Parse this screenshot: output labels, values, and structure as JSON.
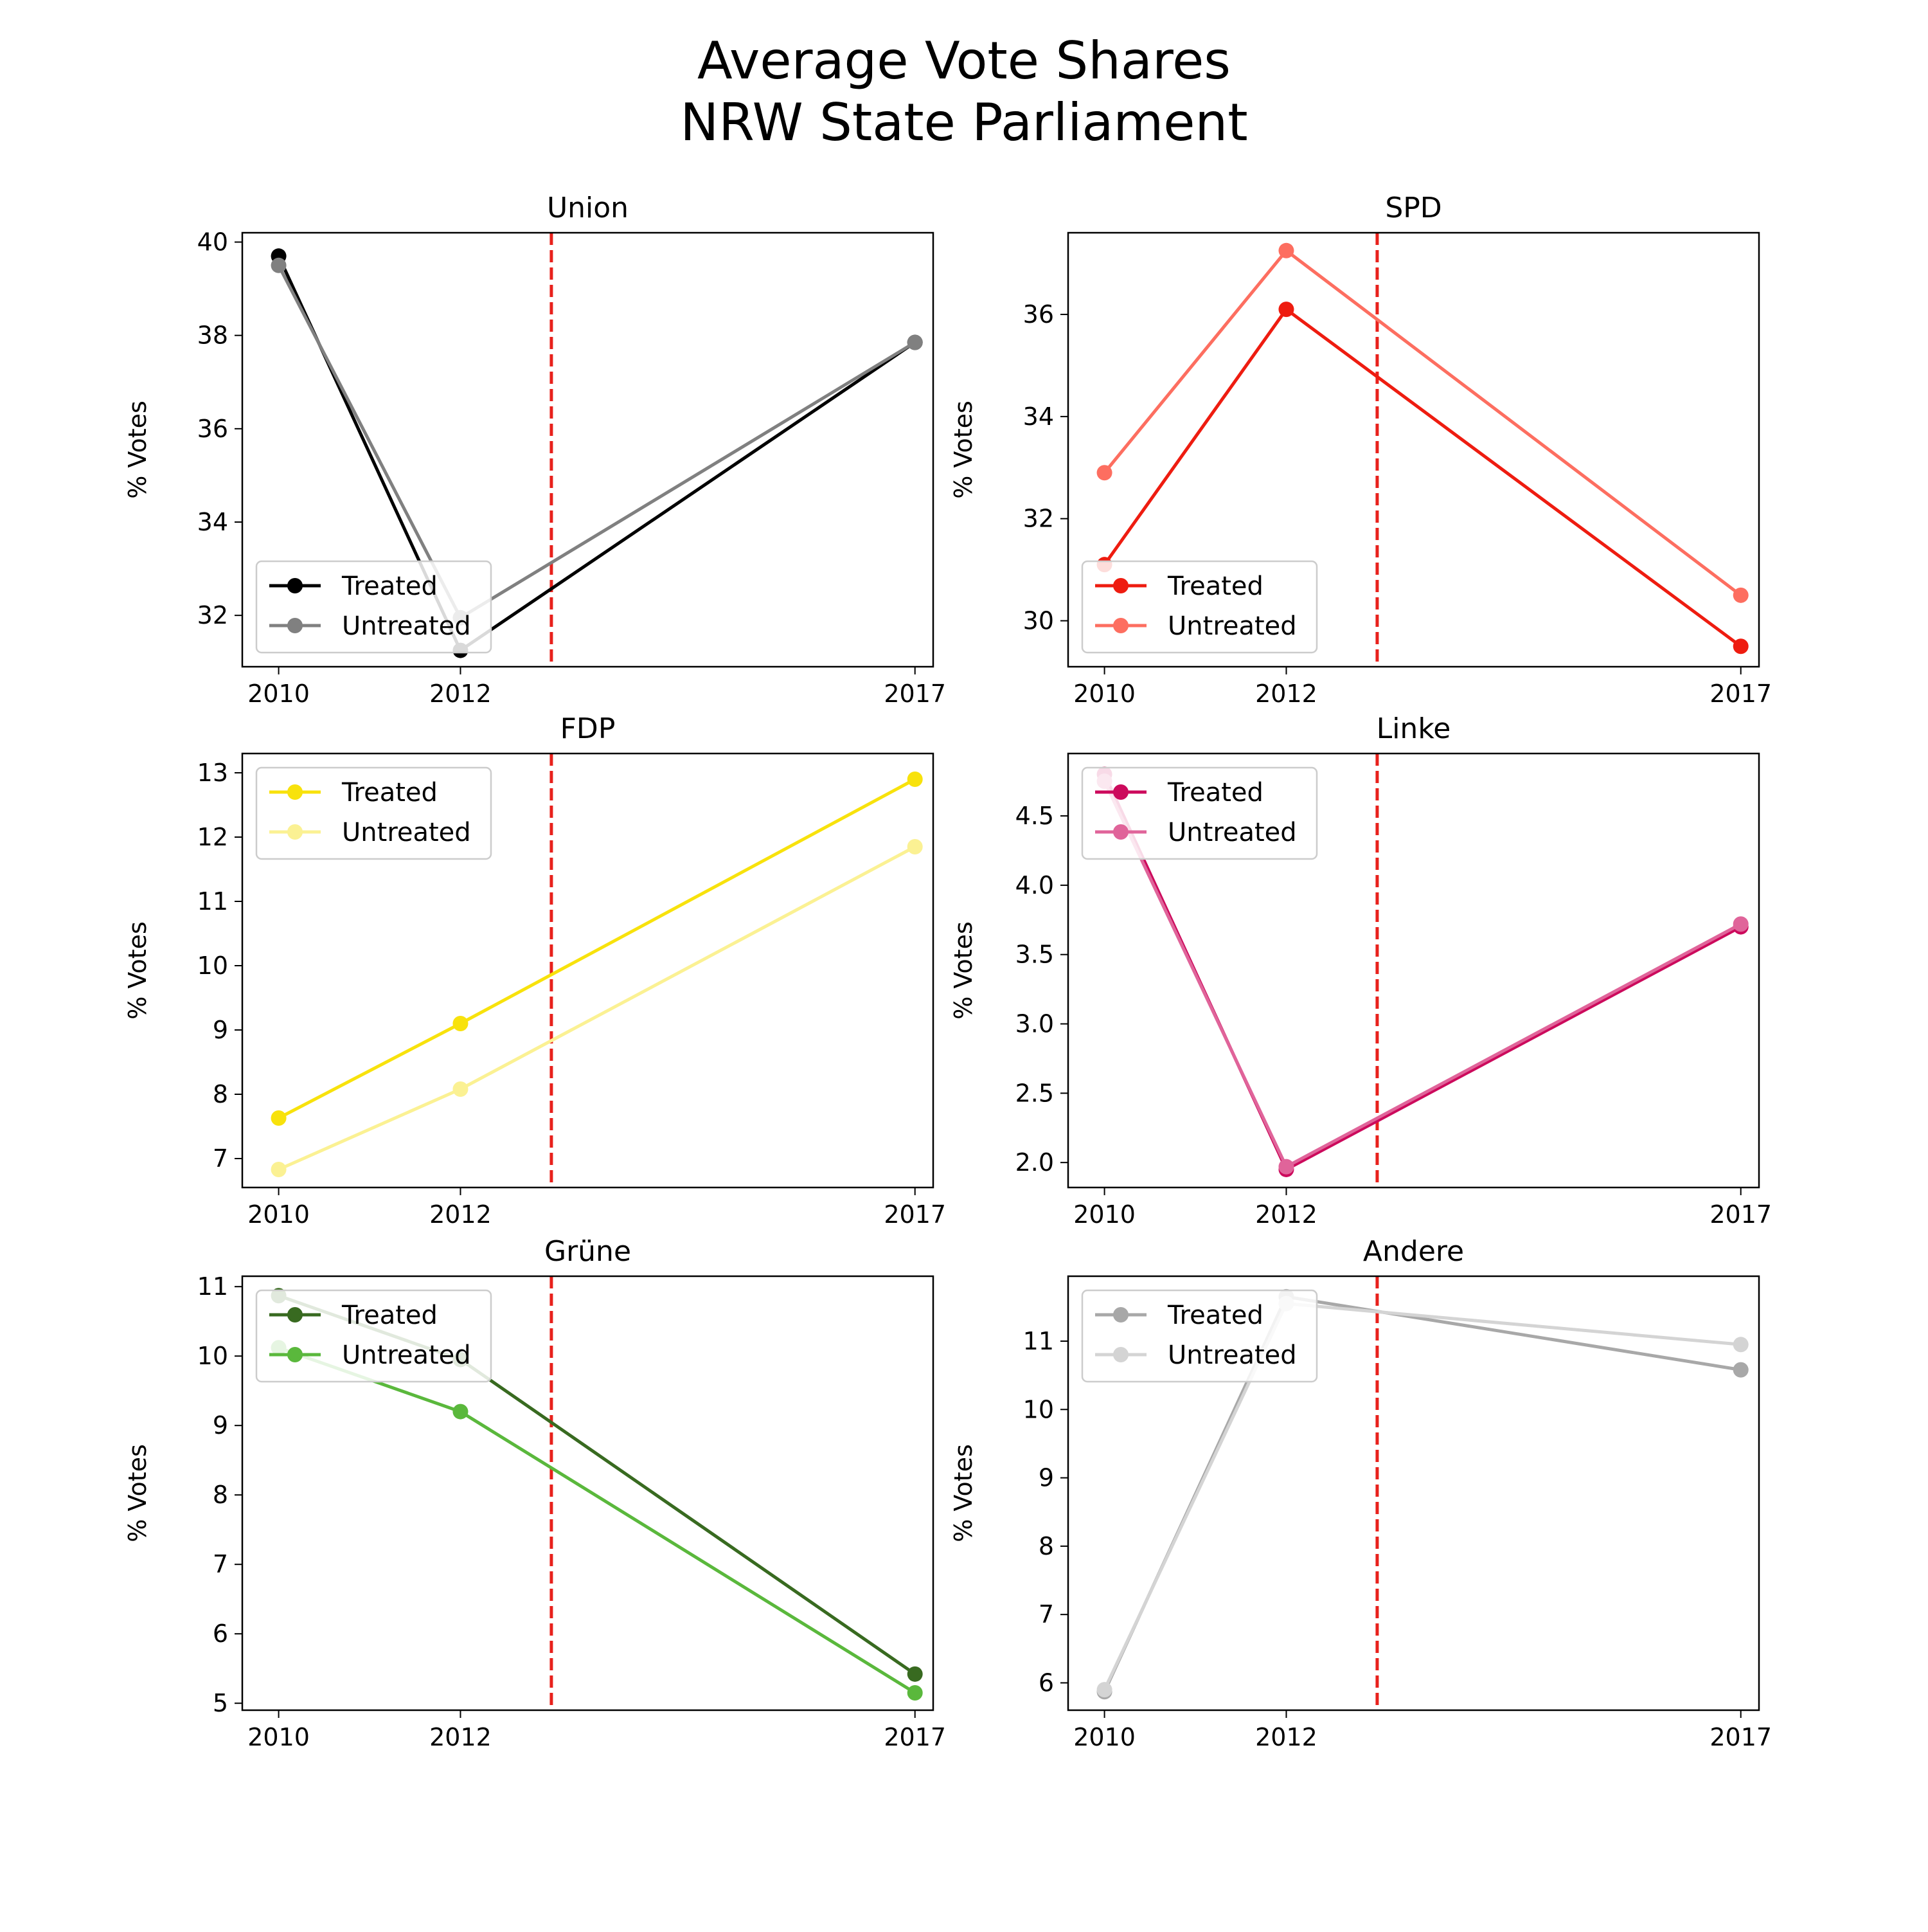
{
  "figure": {
    "title_line1": "Average Vote Shares",
    "title_line2": "NRW State Parliament"
  },
  "marker_line_color": "#e8211c",
  "chart_data": [
    {
      "type": "line",
      "title": "Union",
      "ylabel": "% Votes",
      "x": [
        2010,
        2012,
        2017
      ],
      "xticks": [
        "2010",
        "2012",
        "2017"
      ],
      "ylim": [
        30.9,
        40.2
      ],
      "yticks": [
        32,
        34,
        36,
        38,
        40
      ],
      "yticklabels": [
        "32",
        "34",
        "36",
        "38",
        "40"
      ],
      "legend_position": "lower left",
      "treatment_x": 2013,
      "series": [
        {
          "name": "Treated",
          "values": [
            39.7,
            31.25,
            37.85
          ],
          "color": "#000000"
        },
        {
          "name": "Untreated",
          "values": [
            39.5,
            31.95,
            37.85
          ],
          "color": "#808080"
        }
      ]
    },
    {
      "type": "line",
      "title": "SPD",
      "ylabel": "% Votes",
      "x": [
        2010,
        2012,
        2017
      ],
      "xticks": [
        "2010",
        "2012",
        "2017"
      ],
      "ylim": [
        29.1,
        37.6
      ],
      "yticks": [
        30,
        32,
        34,
        36
      ],
      "yticklabels": [
        "30",
        "32",
        "34",
        "36"
      ],
      "legend_position": "lower left",
      "treatment_x": 2013,
      "series": [
        {
          "name": "Treated",
          "values": [
            31.1,
            36.1,
            29.5
          ],
          "color": "#ee1c10"
        },
        {
          "name": "Untreated",
          "values": [
            32.9,
            37.25,
            30.5
          ],
          "color": "#fd6e60"
        }
      ]
    },
    {
      "type": "line",
      "title": "FDP",
      "ylabel": "% Votes",
      "x": [
        2010,
        2012,
        2017
      ],
      "xticks": [
        "2010",
        "2012",
        "2017"
      ],
      "ylim": [
        6.55,
        13.3
      ],
      "yticks": [
        7,
        8,
        9,
        10,
        11,
        12,
        13
      ],
      "yticklabels": [
        "7",
        "8",
        "9",
        "10",
        "11",
        "12",
        "13"
      ],
      "legend_position": "upper left",
      "treatment_x": 2013,
      "series": [
        {
          "name": "Treated",
          "values": [
            7.63,
            9.1,
            12.9
          ],
          "color": "#f8e20c"
        },
        {
          "name": "Untreated",
          "values": [
            6.83,
            8.08,
            11.85
          ],
          "color": "#fbf193"
        }
      ]
    },
    {
      "type": "line",
      "title": "Linke",
      "ylabel": "% Votes",
      "x": [
        2010,
        2012,
        2017
      ],
      "xticks": [
        "2010",
        "2012",
        "2017"
      ],
      "ylim": [
        1.82,
        4.95
      ],
      "yticks": [
        2.0,
        2.5,
        3.0,
        3.5,
        4.0,
        4.5
      ],
      "yticklabels": [
        "2.0",
        "2.5",
        "3.0",
        "3.5",
        "4.0",
        "4.5"
      ],
      "legend_position": "upper left",
      "treatment_x": 2013,
      "series": [
        {
          "name": "Treated",
          "values": [
            4.8,
            1.95,
            3.7
          ],
          "color": "#cc0a5c"
        },
        {
          "name": "Untreated",
          "values": [
            4.75,
            1.97,
            3.72
          ],
          "color": "#e0649a"
        }
      ]
    },
    {
      "type": "line",
      "title": "Grüne",
      "ylabel": "% Votes",
      "x": [
        2010,
        2012,
        2017
      ],
      "xticks": [
        "2010",
        "2012",
        "2017"
      ],
      "ylim": [
        4.9,
        11.15
      ],
      "yticks": [
        5,
        6,
        7,
        8,
        9,
        10,
        11
      ],
      "yticklabels": [
        "5",
        "6",
        "7",
        "8",
        "9",
        "10",
        "11"
      ],
      "legend_position": "upper left",
      "treatment_x": 2013,
      "series": [
        {
          "name": "Treated",
          "values": [
            10.87,
            9.95,
            5.42
          ],
          "color": "#386a20"
        },
        {
          "name": "Untreated",
          "values": [
            10.12,
            9.2,
            5.15
          ],
          "color": "#5ab83c"
        }
      ]
    },
    {
      "type": "line",
      "title": "Andere",
      "ylabel": "% Votes",
      "x": [
        2010,
        2012,
        2017
      ],
      "xticks": [
        "2010",
        "2012",
        "2017"
      ],
      "ylim": [
        5.6,
        11.95
      ],
      "yticks": [
        6,
        7,
        8,
        9,
        10,
        11
      ],
      "yticklabels": [
        "6",
        "7",
        "8",
        "9",
        "10",
        "11"
      ],
      "legend_position": "upper left",
      "treatment_x": 2013,
      "series": [
        {
          "name": "Treated",
          "values": [
            5.87,
            11.65,
            10.58
          ],
          "color": "#a8a8a8"
        },
        {
          "name": "Untreated",
          "values": [
            5.9,
            11.55,
            10.95
          ],
          "color": "#d4d4d4"
        }
      ]
    }
  ]
}
